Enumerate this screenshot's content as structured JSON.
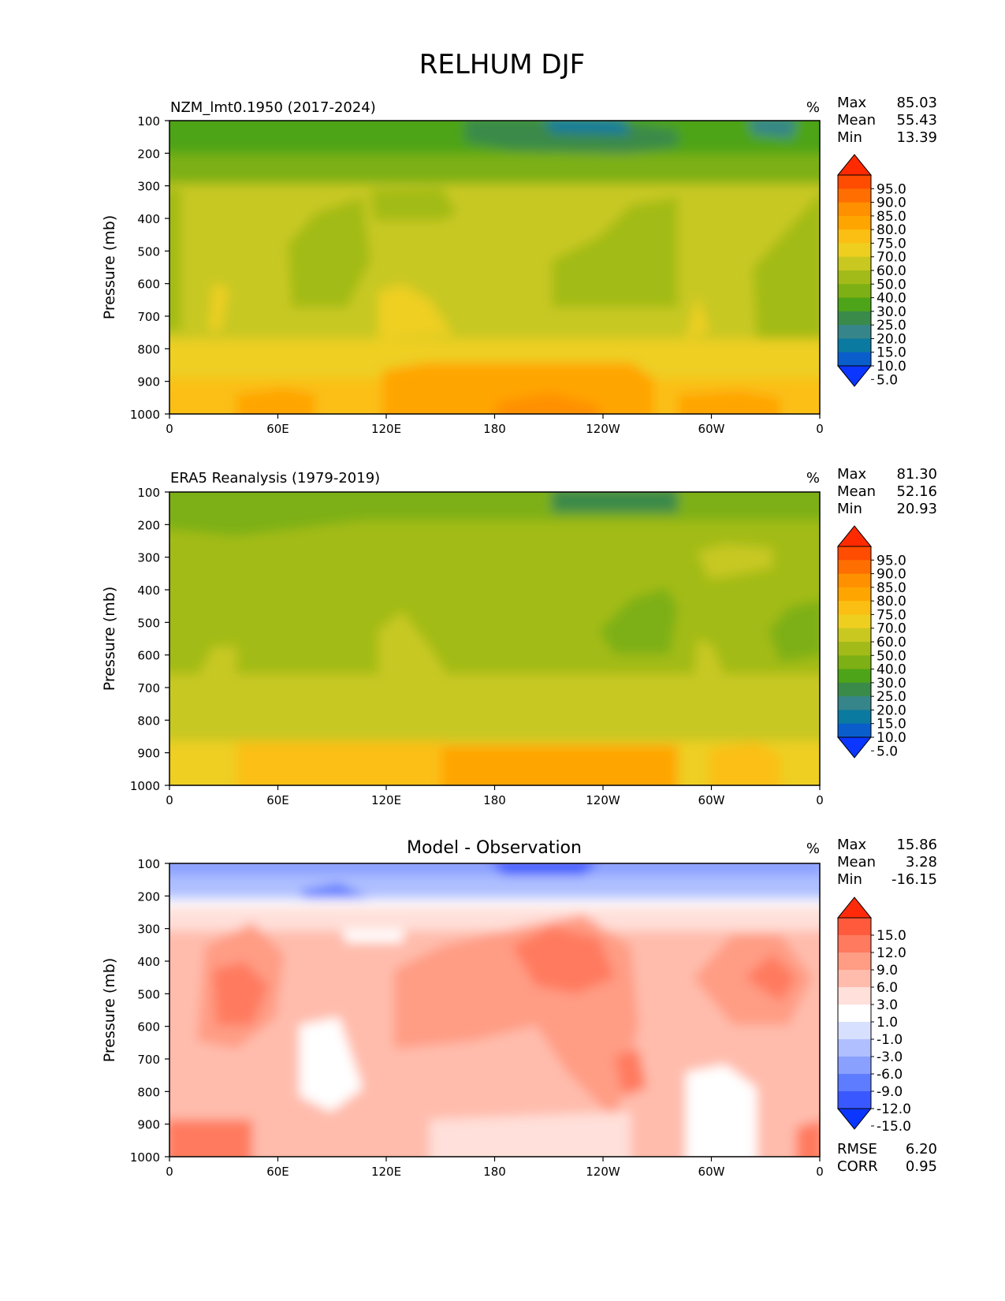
{
  "figure_title": "RELHUM DJF",
  "chart_data": [
    {
      "type": "heatmap",
      "title": "NZM_lmt0.1950 (2017-2024)",
      "units": "%",
      "ylabel": "Pressure (mb)",
      "xticks": [
        "0",
        "60E",
        "120E",
        "180",
        "120W",
        "60W",
        "0"
      ],
      "yticks": [
        "100",
        "200",
        "300",
        "400",
        "500",
        "600",
        "700",
        "800",
        "900",
        "1000"
      ],
      "ylim": [
        1000,
        100
      ],
      "stats": {
        "Max": "85.03",
        "Mean": "55.43",
        "Min": "13.39"
      },
      "colorbar": {
        "labels": [
          "95.0",
          "90.0",
          "85.0",
          "80.0",
          "75.0",
          "70.0",
          "60.0",
          "50.0",
          "40.0",
          "30.0",
          "25.0",
          "20.0",
          "15.0",
          "10.0",
          "5.0"
        ],
        "colors": [
          "#ff2a00",
          "#ff4c00",
          "#ff6e00",
          "#ff9000",
          "#ffa500",
          "#fbbf14",
          "#eecf20",
          "#c8c820",
          "#a3bb18",
          "#7db014",
          "#4da418",
          "#3a8a4a",
          "#36858a",
          "#0b7aa0",
          "#0a5ecc",
          "#0b36ff"
        ]
      }
    },
    {
      "type": "heatmap",
      "title": "ERA5 Reanalysis (1979-2019)",
      "units": "%",
      "ylabel": "Pressure (mb)",
      "xticks": [
        "0",
        "60E",
        "120E",
        "180",
        "120W",
        "60W",
        "0"
      ],
      "yticks": [
        "100",
        "200",
        "300",
        "400",
        "500",
        "600",
        "700",
        "800",
        "900",
        "1000"
      ],
      "ylim": [
        1000,
        100
      ],
      "stats": {
        "Max": "81.30",
        "Mean": "52.16",
        "Min": "20.93"
      },
      "colorbar": {
        "labels": [
          "95.0",
          "90.0",
          "85.0",
          "80.0",
          "75.0",
          "70.0",
          "60.0",
          "50.0",
          "40.0",
          "30.0",
          "25.0",
          "20.0",
          "15.0",
          "10.0",
          "5.0"
        ],
        "colors": [
          "#ff2a00",
          "#ff4c00",
          "#ff6e00",
          "#ff9000",
          "#ffa500",
          "#fbbf14",
          "#eecf20",
          "#c8c820",
          "#a3bb18",
          "#7db014",
          "#4da418",
          "#3a8a4a",
          "#36858a",
          "#0b7aa0",
          "#0a5ecc",
          "#0b36ff"
        ]
      }
    },
    {
      "type": "heatmap",
      "title": "Model - Observation",
      "units": "%",
      "ylabel": "Pressure (mb)",
      "xticks": [
        "0",
        "60E",
        "120E",
        "180",
        "120W",
        "60W",
        "0"
      ],
      "yticks": [
        "100",
        "200",
        "300",
        "400",
        "500",
        "600",
        "700",
        "800",
        "900",
        "1000"
      ],
      "ylim": [
        1000,
        100
      ],
      "stats": {
        "Max": "15.86",
        "Mean": "3.28",
        "Min": "-16.15"
      },
      "metrics": {
        "RMSE": "6.20",
        "CORR": "0.95"
      },
      "colorbar": {
        "labels": [
          "15.0",
          "12.0",
          "9.0",
          "6.0",
          "3.0",
          "1.0",
          "-1.0",
          "-3.0",
          "-6.0",
          "-9.0",
          "-12.0",
          "-15.0"
        ],
        "colors": [
          "#ff2a0a",
          "#ff5a3c",
          "#ff7a5e",
          "#ff9c84",
          "#ffbcac",
          "#ffe0da",
          "#ffffff",
          "#d8e0ff",
          "#afbfff",
          "#8aa0ff",
          "#5e7cff",
          "#3a58ff",
          "#0b36ff"
        ]
      }
    }
  ]
}
